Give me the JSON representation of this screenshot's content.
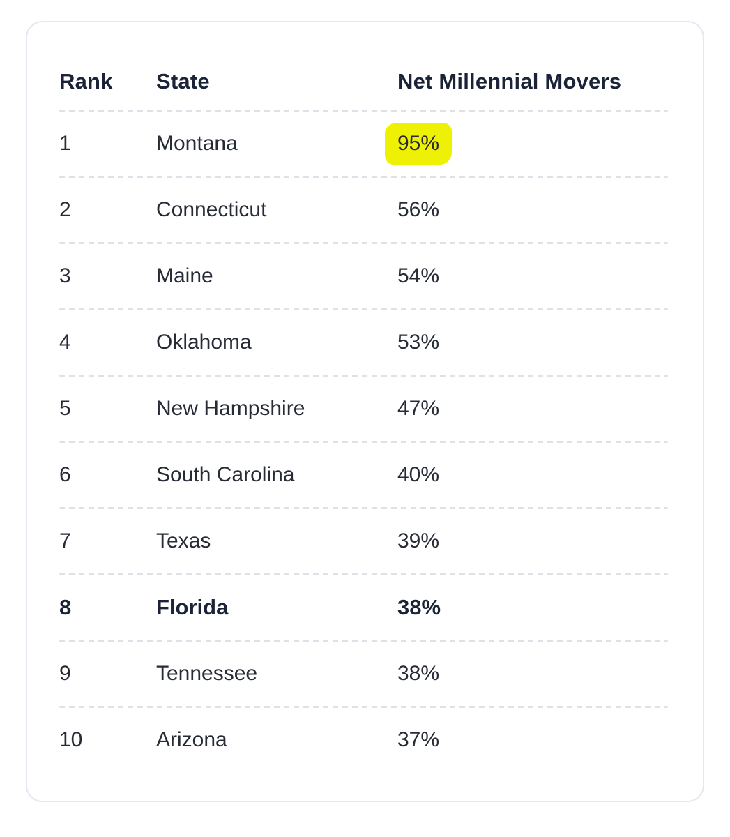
{
  "colors": {
    "page_bg": "#ffffff",
    "card_bg": "#ffffff",
    "card_border": "#e5e7f0",
    "divider": "#dee1e8",
    "header_text": "#1a2338",
    "body_text": "#272b35",
    "highlight": "#eff104"
  },
  "chart_data": {
    "type": "table",
    "title": "",
    "columns": [
      "Rank",
      "State",
      "Net Millennial Movers"
    ],
    "rows": [
      {
        "rank": "1",
        "state": "Montana",
        "value": "95%",
        "highlight": true,
        "bold": false
      },
      {
        "rank": "2",
        "state": "Connecticut",
        "value": "56%",
        "highlight": false,
        "bold": false
      },
      {
        "rank": "3",
        "state": "Maine",
        "value": "54%",
        "highlight": false,
        "bold": false
      },
      {
        "rank": "4",
        "state": "Oklahoma",
        "value": "53%",
        "highlight": false,
        "bold": false
      },
      {
        "rank": "5",
        "state": "New Hampshire",
        "value": "47%",
        "highlight": false,
        "bold": false
      },
      {
        "rank": "6",
        "state": "South Carolina",
        "value": "40%",
        "highlight": false,
        "bold": false
      },
      {
        "rank": "7",
        "state": "Texas",
        "value": "39%",
        "highlight": false,
        "bold": false
      },
      {
        "rank": "8",
        "state": "Florida",
        "value": "38%",
        "highlight": false,
        "bold": true
      },
      {
        "rank": "9",
        "state": "Tennessee",
        "value": "38%",
        "highlight": false,
        "bold": false
      },
      {
        "rank": "10",
        "state": "Arizona",
        "value": "37%",
        "highlight": false,
        "bold": false
      }
    ],
    "annotations": [
      "Montana's 95% value is marked with a yellow highlighter swipe",
      "Row 8 (Florida, 38%) is emphasized in bold dark navy"
    ],
    "legend_position": "none",
    "grid": "dashed horizontal separators between rows"
  }
}
